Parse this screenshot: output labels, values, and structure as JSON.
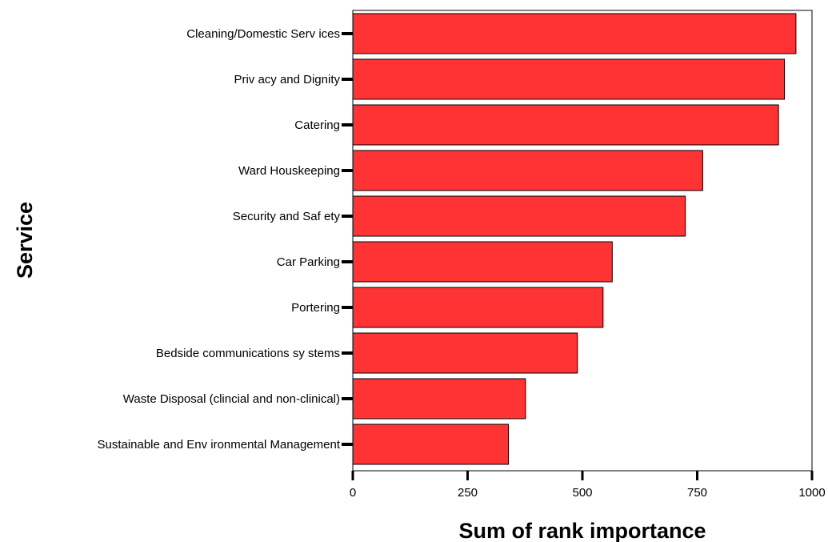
{
  "chart_data": {
    "type": "bar",
    "orientation": "horizontal",
    "title": "",
    "xlabel": "Sum of rank importance",
    "ylabel": "Service",
    "xlim": [
      0,
      1000
    ],
    "xticks": [
      0,
      250,
      500,
      750,
      1000
    ],
    "grid": false,
    "legend": "none",
    "bar_color": "#ff3333",
    "categories": [
      "Cleaning/Domestic Serv ices",
      "Priv acy and Dignity",
      "Catering",
      "Ward Houskeeping",
      "Security and Saf ety",
      "Car Parking",
      "Portering",
      "Bedside communications sy stems",
      "Waste Disposal (clincial and non-clinical)",
      "Sustainable and Env ironmental Management"
    ],
    "values": [
      965,
      940,
      927,
      762,
      724,
      565,
      545,
      489,
      376,
      339
    ]
  }
}
